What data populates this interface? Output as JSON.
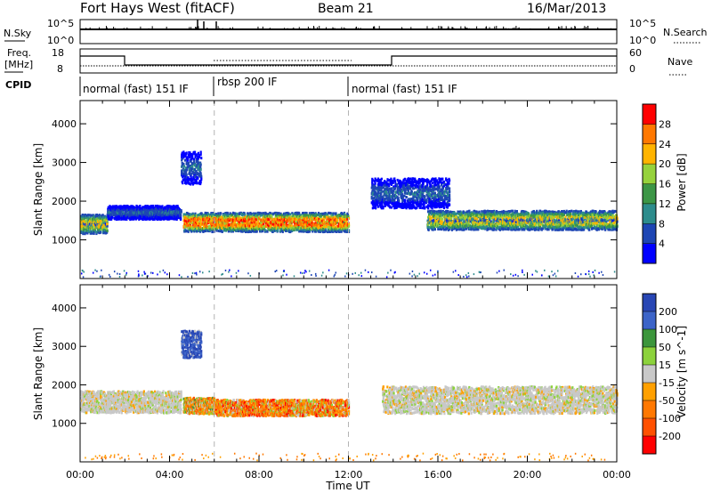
{
  "header": {
    "title": "Fort Hays West (fitACF)",
    "beam": "Beam 21",
    "date": "16/Mar/2013"
  },
  "noise_panel": {
    "left_label": "N.Sky",
    "right_label": "N.Search",
    "left_ticks": [
      "10^5",
      "10^0"
    ],
    "right_ticks": [
      "10^5",
      "10^0"
    ]
  },
  "freq_panel": {
    "left_label_1": "Freq.",
    "left_label_2": "[MHz]",
    "left_ticks": [
      "18",
      "8"
    ],
    "right_label": "Nave",
    "right_ticks": [
      "60",
      "0"
    ]
  },
  "cpid": {
    "label": "CPID",
    "segments": [
      {
        "label": "normal (fast) 151 IF",
        "start": 0,
        "end": 6
      },
      {
        "label": "rbsp 200 IF",
        "start": 6,
        "end": 12
      },
      {
        "label": "normal (fast) 151 IF",
        "start": 12,
        "end": 24
      }
    ]
  },
  "colors": {
    "power": [
      "#0000ff",
      "#1e46b4",
      "#2d8c8c",
      "#3c9646",
      "#96d23c",
      "#ffb400",
      "#ff7800",
      "#ff0000"
    ],
    "velocity": [
      "#2846b4",
      "#3c64c8",
      "#3c963c",
      "#8cd23c",
      "#c8c8c8",
      "#ffa000",
      "#ff7800",
      "#ff5000",
      "#ff0000"
    ],
    "dashed_line": "#b4b4b4"
  },
  "chart_data": [
    {
      "type": "heatmap",
      "title": "",
      "ylabel": "Slant Range [km]",
      "xlabel": "",
      "x_range_hours": [
        0,
        24
      ],
      "ylim": [
        0,
        4600
      ],
      "y_ticks": [
        "1000",
        "2000",
        "3000",
        "4000"
      ],
      "colorbar_label": "Power [dB]",
      "colorbar_ticks": [
        "4",
        "8",
        "12",
        "16",
        "20",
        "24",
        "28"
      ],
      "vertical_dashed_hours": [
        6,
        12
      ],
      "bands": [
        {
          "start_h": 0.0,
          "end_h": 1.2,
          "center_km": 1400,
          "width_km": 350,
          "level": "medium"
        },
        {
          "start_h": 1.2,
          "end_h": 4.5,
          "center_km": 1700,
          "width_km": 250,
          "level": "weak"
        },
        {
          "start_h": 4.5,
          "end_h": 5.4,
          "center_km": 2850,
          "width_km": 600,
          "level": "weak"
        },
        {
          "start_h": 4.6,
          "end_h": 12.0,
          "center_km": 1450,
          "width_km": 350,
          "level": "strong"
        },
        {
          "start_h": 13.0,
          "end_h": 16.5,
          "center_km": 2200,
          "width_km": 550,
          "level": "weak"
        },
        {
          "start_h": 15.5,
          "end_h": 24.0,
          "center_km": 1500,
          "width_km": 350,
          "level": "medium"
        }
      ]
    },
    {
      "type": "heatmap",
      "title": "",
      "ylabel": "Slant Range [km]",
      "xlabel": "Time UT",
      "x_range_hours": [
        0,
        24
      ],
      "x_ticks": [
        "00:00",
        "04:00",
        "08:00",
        "12:00",
        "16:00",
        "20:00",
        "00:00"
      ],
      "ylim": [
        0,
        4600
      ],
      "y_ticks": [
        "1000",
        "2000",
        "3000",
        "4000"
      ],
      "colorbar_label": "Velocity [m s^-1]",
      "colorbar_ticks": [
        "200",
        "100",
        "50",
        "15",
        "-15",
        "-50",
        "-100",
        "-200"
      ],
      "vertical_dashed_hours": [
        6,
        12
      ],
      "bands": [
        {
          "start_h": 0.0,
          "end_h": 4.5,
          "center_km": 1550,
          "width_km": 400,
          "level": "ground"
        },
        {
          "start_h": 4.6,
          "end_h": 6.0,
          "center_km": 1450,
          "width_km": 300,
          "level": "mixed"
        },
        {
          "start_h": 6.0,
          "end_h": 12.0,
          "center_km": 1400,
          "width_km": 300,
          "level": "negative"
        },
        {
          "start_h": 4.5,
          "end_h": 5.4,
          "center_km": 3050,
          "width_km": 500,
          "level": "positive"
        },
        {
          "start_h": 13.5,
          "end_h": 24.0,
          "center_km": 1600,
          "width_km": 500,
          "level": "ground"
        }
      ]
    }
  ]
}
